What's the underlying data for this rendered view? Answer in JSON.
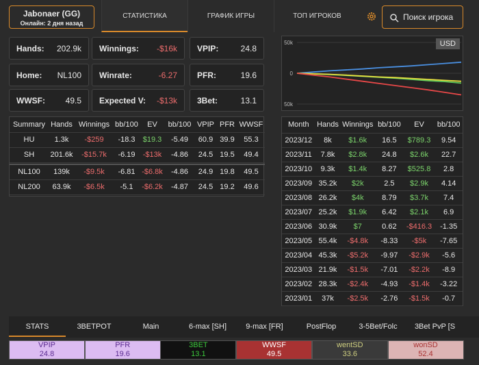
{
  "header": {
    "player": {
      "name": "Jabonaer (GG)",
      "status": "Онлайн: 2 дня назад"
    },
    "tabs": [
      "СТАТИСТИКА",
      "ГРАФИК ИГРЫ",
      "ТОП ИГРОКОВ"
    ],
    "active_tab": 0,
    "search": "Поиск игрока"
  },
  "cards": [
    {
      "label": "Hands:",
      "value": "202.9k"
    },
    {
      "label": "Winnings:",
      "value": "-$16k"
    },
    {
      "label": "VPIP:",
      "value": "24.8"
    },
    {
      "label": "Home:",
      "value": "NL100"
    },
    {
      "label": "Winrate:",
      "value": "-6.27"
    },
    {
      "label": "PFR:",
      "value": "19.6"
    },
    {
      "label": "WWSF:",
      "value": "49.5"
    },
    {
      "label": "Expected V:",
      "value": "-$13k"
    },
    {
      "label": "3Bet:",
      "value": "13.1"
    }
  ],
  "summary": {
    "header": [
      "Summary",
      "Hands",
      "Winnings",
      "bb/100",
      "EV",
      "bb/100",
      "VPIP",
      "PFR",
      "WWSF"
    ],
    "colored_columns": [
      2,
      4
    ],
    "groups": [
      [
        [
          "HU",
          "1.3k",
          "-$259",
          "-18.3",
          "$19.3",
          "-5.49",
          "60.9",
          "39.9",
          "55.3"
        ],
        [
          "SH",
          "201.6k",
          "-$15.7k",
          "-6.19",
          "-$13k",
          "-4.86",
          "24.5",
          "19.5",
          "49.4"
        ]
      ],
      [
        [
          "NL100",
          "139k",
          "-$9.5k",
          "-6.81",
          "-$6.8k",
          "-4.86",
          "24.9",
          "19.8",
          "49.5"
        ],
        [
          "NL200",
          "63.9k",
          "-$6.5k",
          "-5.1",
          "-$6.2k",
          "-4.87",
          "24.5",
          "19.2",
          "49.6"
        ]
      ]
    ]
  },
  "chart": {
    "type": "line",
    "currency": "USD",
    "ylim": [
      -60000,
      60000
    ],
    "yticks": [
      {
        "value": 50000,
        "label": "50k"
      },
      0,
      {
        "value": -50000,
        "label": "50k"
      }
    ],
    "series": [
      {
        "color": "#4a90e2",
        "values": [
          0,
          2000,
          4000,
          5500,
          7000,
          9000,
          10500,
          12000,
          14000,
          16000,
          18000
        ]
      },
      {
        "color": "#5fc85a",
        "values": [
          0,
          -1000,
          -2000,
          -3500,
          -5000,
          -6500,
          -8000,
          -10000,
          -12000,
          -13500,
          -16000
        ]
      },
      {
        "color": "#e6e040",
        "values": [
          0,
          -800,
          -1800,
          -3000,
          -4500,
          -6000,
          -7000,
          -8500,
          -10000,
          -11500,
          -13000
        ]
      },
      {
        "color": "#e84848",
        "values": [
          0,
          -3000,
          -6000,
          -9500,
          -13000,
          -16500,
          -20000,
          -23500,
          -27000,
          -31000,
          -35000
        ]
      }
    ]
  },
  "months": {
    "header": [
      "Month",
      "Hands",
      "Winnings",
      "bb/100",
      "EV",
      "bb/100"
    ],
    "colored_columns": [
      2,
      4
    ],
    "rows": [
      [
        "2023/12",
        "8k",
        "$1.6k",
        "16.5",
        "$789.3",
        "9.54"
      ],
      [
        "2023/11",
        "7.8k",
        "$2.8k",
        "24.8",
        "$2.6k",
        "22.7"
      ],
      [
        "2023/10",
        "9.3k",
        "$1.4k",
        "8.27",
        "$525.8",
        "2.8"
      ],
      [
        "2023/09",
        "35.2k",
        "$2k",
        "2.5",
        "$2.9k",
        "4.14"
      ],
      [
        "2023/08",
        "26.2k",
        "$4k",
        "8.79",
        "$3.7k",
        "7.4"
      ],
      [
        "2023/07",
        "25.2k",
        "$1.9k",
        "6.42",
        "$2.1k",
        "6.9"
      ],
      [
        "2023/06",
        "30.9k",
        "$7",
        "0.62",
        "-$416.3",
        "-1.35"
      ],
      [
        "2023/05",
        "55.4k",
        "-$4.8k",
        "-8.33",
        "-$5k",
        "-7.65"
      ],
      [
        "2023/04",
        "45.3k",
        "-$5.2k",
        "-9.97",
        "-$2.9k",
        "-5.6"
      ],
      [
        "2023/03",
        "21.9k",
        "-$1.5k",
        "-7.01",
        "-$2.2k",
        "-8.9"
      ],
      [
        "2023/02",
        "28.3k",
        "-$2.4k",
        "-4.93",
        "-$1.4k",
        "-3.22"
      ],
      [
        "2023/01",
        "37k",
        "-$2.5k",
        "-2.76",
        "-$1.5k",
        "-0.7"
      ]
    ]
  },
  "bottom": {
    "tabs": [
      "STATS",
      "3BETPOT",
      "Main",
      "6-max [SH]",
      "9-max [FR]",
      "PostFlop",
      "3-5Bet/Folc",
      "3Bet PvP [S"
    ],
    "active_tab": 0,
    "stats": [
      {
        "label": "VPIP",
        "value": "24.8",
        "bg": "#dcbcf2",
        "color": "#5a2a90"
      },
      {
        "label": "PFR",
        "value": "19.6",
        "bg": "#dcbcf2",
        "color": "#5a2a90"
      },
      {
        "label": "3BET",
        "value": "13.1",
        "bg": "#111111",
        "color": "#3cc83c"
      },
      {
        "label": "WWSF",
        "value": "49.5",
        "bg": "#a83232",
        "color": "#ffffff"
      },
      {
        "label": "wentSD",
        "value": "33.6",
        "bg": "#3a3a3a",
        "color": "#cfcf80"
      },
      {
        "label": "wonSD",
        "value": "52.4",
        "bg": "#dcb4b4",
        "color": "#a83232"
      }
    ]
  }
}
